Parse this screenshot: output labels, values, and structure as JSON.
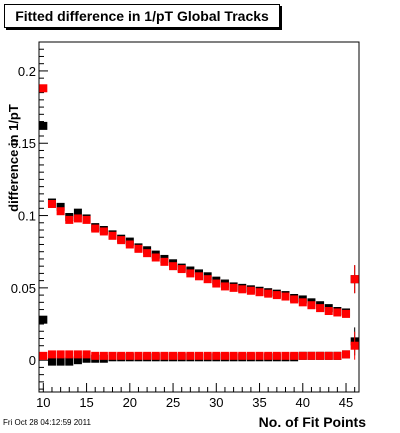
{
  "title": "Fitted difference in 1/pT  Global Tracks",
  "datestamp": "Fri Oct 28 04:12:59 2011",
  "chart_data": {
    "type": "scatter",
    "title": "Fitted difference in 1/pT  Global Tracks",
    "xlabel": "No. of Fit Points",
    "ylabel": "difference in 1/pT",
    "xlim": [
      9.5,
      46.5
    ],
    "ylim": [
      -0.022,
      0.22
    ],
    "x_ticks": [
      10,
      15,
      20,
      25,
      30,
      35,
      40,
      45
    ],
    "y_ticks": [
      0,
      0.05,
      0.1,
      0.15,
      0.2
    ],
    "y_tick_labels": [
      "0",
      "0.05",
      "0.1",
      "0.15",
      "0.2"
    ],
    "grid": false,
    "x": [
      10,
      11,
      12,
      13,
      14,
      15,
      16,
      17,
      18,
      19,
      20,
      21,
      22,
      23,
      24,
      25,
      26,
      27,
      28,
      29,
      30,
      31,
      32,
      33,
      34,
      35,
      36,
      37,
      38,
      39,
      40,
      41,
      42,
      43,
      44,
      45,
      46
    ],
    "series": [
      {
        "color": "#000000",
        "values": [
          0.162,
          0.109,
          0.106,
          0.099,
          0.102,
          0.098,
          0.092,
          0.09,
          0.087,
          0.084,
          0.082,
          0.078,
          0.076,
          0.073,
          0.07,
          0.067,
          0.064,
          0.062,
          0.06,
          0.058,
          0.055,
          0.053,
          0.051,
          0.05,
          0.049,
          0.048,
          0.047,
          0.046,
          0.045,
          0.043,
          0.042,
          0.04,
          0.038,
          0.036,
          0.034,
          0.033,
          0.056
        ]
      },
      {
        "color": "#ff0000",
        "values": [
          0.188,
          0.108,
          0.103,
          0.097,
          0.098,
          0.097,
          0.091,
          0.089,
          0.086,
          0.083,
          0.08,
          0.077,
          0.074,
          0.071,
          0.068,
          0.065,
          0.063,
          0.06,
          0.058,
          0.056,
          0.053,
          0.051,
          0.05,
          0.049,
          0.048,
          0.047,
          0.046,
          0.045,
          0.044,
          0.042,
          0.04,
          0.038,
          0.036,
          0.034,
          0.033,
          0.032,
          0.056
        ]
      },
      {
        "color": "#000000",
        "values": [
          0.028,
          -0.001,
          -0.001,
          -0.001,
          0.0,
          0.001,
          0.001,
          0.001,
          0.002,
          0.002,
          0.002,
          0.002,
          0.002,
          0.002,
          0.002,
          0.002,
          0.002,
          0.002,
          0.002,
          0.002,
          0.002,
          0.002,
          0.002,
          0.002,
          0.002,
          0.002,
          0.002,
          0.002,
          0.002,
          0.002,
          0.003,
          0.003,
          0.003,
          0.003,
          0.003,
          0.004,
          0.013
        ]
      },
      {
        "color": "#ff0000",
        "values": [
          0.003,
          0.004,
          0.004,
          0.004,
          0.004,
          0.004,
          0.003,
          0.003,
          0.003,
          0.003,
          0.003,
          0.003,
          0.003,
          0.003,
          0.003,
          0.003,
          0.003,
          0.003,
          0.003,
          0.003,
          0.003,
          0.003,
          0.003,
          0.003,
          0.003,
          0.003,
          0.003,
          0.003,
          0.003,
          0.003,
          0.003,
          0.003,
          0.003,
          0.003,
          0.003,
          0.004,
          0.01
        ]
      }
    ]
  }
}
